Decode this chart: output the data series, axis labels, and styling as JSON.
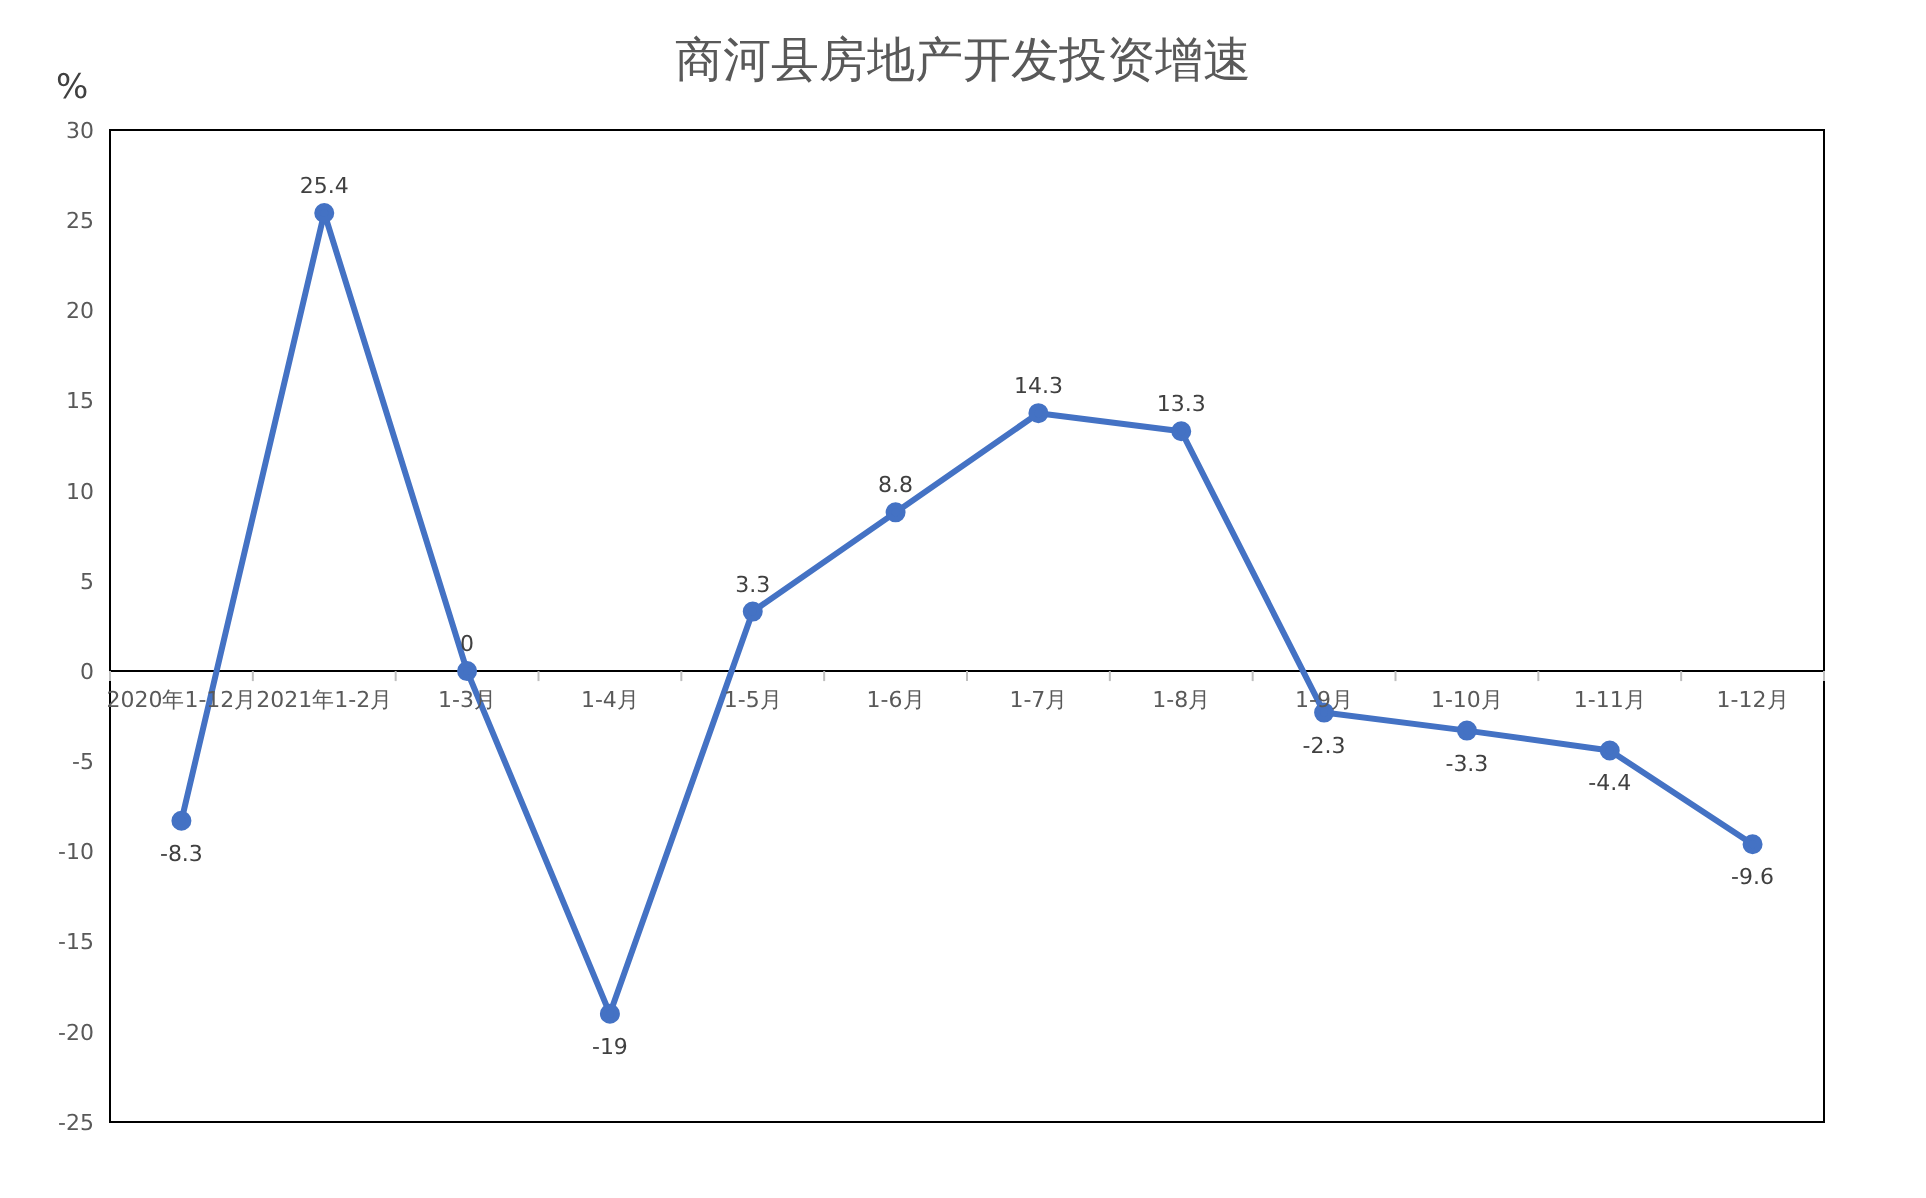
{
  "chart_data": {
    "type": "line",
    "title": "商河县房地产开发投资增速",
    "ylabel": "%",
    "categories": [
      "2020年1-12月",
      "2021年1-2月",
      "1-3月",
      "1-4月",
      "1-5月",
      "1-6月",
      "1-7月",
      "1-8月",
      "1-9月",
      "1-10月",
      "1-11月",
      "1-12月"
    ],
    "series": [
      {
        "color": "#4472c4",
        "values": [
          -8.3,
          25.4,
          0,
          -19,
          3.3,
          8.8,
          14.3,
          13.3,
          -2.3,
          -3.3,
          -4.4,
          -9.6
        ]
      }
    ],
    "ylim": [
      -25,
      30
    ],
    "yticks": [
      -25,
      -20,
      -15,
      -10,
      -5,
      0,
      5,
      10,
      15,
      20,
      25,
      30
    ],
    "data_labels": true,
    "marker": "circle",
    "line_style": "solid",
    "grid": false,
    "legend": false
  }
}
